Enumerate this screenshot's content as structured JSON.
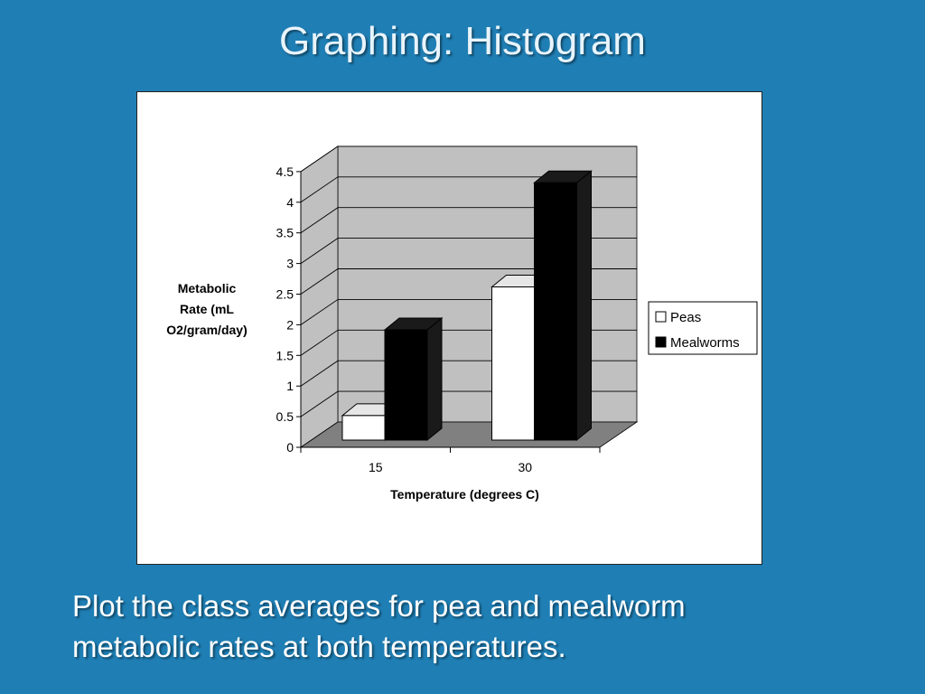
{
  "slide": {
    "title": "Graphing: Histogram",
    "caption_lines": [
      "Plot the class averages for pea and mealworm",
      "metabolic rates at both temperatures."
    ]
  },
  "colors": {
    "background": "#1f7fb5",
    "wall": "#c0c0c0",
    "floor": "#808080",
    "peas": "#ffffff",
    "mealworms": "#000000"
  },
  "chart_data": {
    "type": "bar",
    "style": "3d-clustered-column",
    "categories": [
      "15",
      "30"
    ],
    "series": [
      {
        "name": "Peas",
        "values": [
          0.4,
          2.5
        ]
      },
      {
        "name": "Mealworms",
        "values": [
          1.8,
          4.2
        ]
      }
    ],
    "ylabel_lines": [
      "Metabolic",
      "Rate (mL",
      "O2/gram/day)"
    ],
    "xlabel": "Temperature (degrees C)",
    "ylim": [
      0,
      4.5
    ],
    "yticks": [
      "0",
      "0.5",
      "1",
      "1.5",
      "2",
      "2.5",
      "3",
      "3.5",
      "4",
      "4.5"
    ],
    "grid": true,
    "legend_position": "right"
  }
}
